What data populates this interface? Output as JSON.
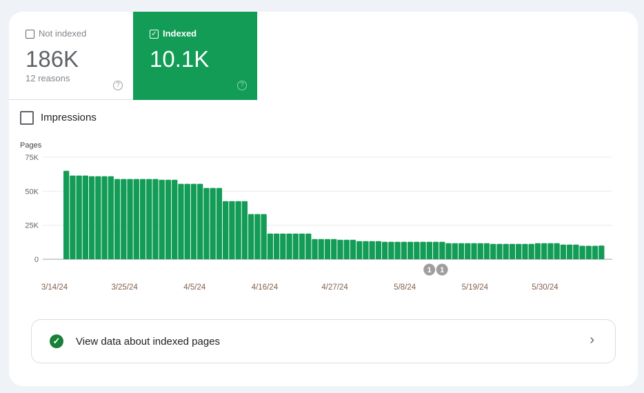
{
  "tiles": [
    {
      "label": "Not indexed",
      "value": "186K",
      "sub": "12 reasons",
      "checked": false,
      "help_icon": "help-circle-icon"
    },
    {
      "label": "Indexed",
      "value": "10.1K",
      "checked": true,
      "help_icon": "help-circle-icon"
    }
  ],
  "impressions": {
    "label": "Impressions",
    "checked": false
  },
  "colors": {
    "accent": "#129c55",
    "success": "#188038"
  },
  "chart_data": {
    "type": "bar",
    "ylabel": "Pages",
    "ylim": [
      0,
      75000
    ],
    "yticks": [
      "0",
      "25K",
      "50K",
      "75K"
    ],
    "ytick_values": [
      0,
      25000,
      50000,
      75000
    ],
    "xtick_labels": [
      "3/14/24",
      "3/25/24",
      "4/5/24",
      "4/16/24",
      "4/27/24",
      "5/8/24",
      "5/19/24",
      "5/30/24"
    ],
    "grid": true,
    "categories": [
      "3/14",
      "3/15",
      "3/16",
      "3/17",
      "3/18",
      "3/19",
      "3/20",
      "3/21",
      "3/22",
      "3/23",
      "3/24",
      "3/25",
      "3/26",
      "3/27",
      "3/28",
      "3/29",
      "3/30",
      "3/31",
      "4/1",
      "4/2",
      "4/3",
      "4/4",
      "4/5",
      "4/6",
      "4/7",
      "4/8",
      "4/9",
      "4/10",
      "4/11",
      "4/12",
      "4/13",
      "4/14",
      "4/15",
      "4/16",
      "4/17",
      "4/18",
      "4/19",
      "4/20",
      "4/21",
      "4/22",
      "4/23",
      "4/24",
      "4/25",
      "4/26",
      "4/27",
      "4/28",
      "4/29",
      "4/30",
      "5/1",
      "5/2",
      "5/3",
      "5/4",
      "5/5",
      "5/6",
      "5/7",
      "5/8",
      "5/9",
      "5/10",
      "5/11",
      "5/12",
      "5/13",
      "5/14",
      "5/15",
      "5/16",
      "5/17",
      "5/18",
      "5/19",
      "5/20",
      "5/21",
      "5/22",
      "5/23",
      "5/24",
      "5/25",
      "5/26",
      "5/27",
      "5/28",
      "5/29",
      "5/30",
      "5/31",
      "6/1",
      "6/2",
      "6/3",
      "6/4",
      "6/5",
      "6/6"
    ],
    "values": [
      65000,
      61500,
      61500,
      61500,
      61000,
      61000,
      61000,
      61000,
      59000,
      59000,
      59000,
      59000,
      59000,
      59000,
      59000,
      58400,
      58400,
      58400,
      55400,
      55400,
      55400,
      55400,
      52400,
      52400,
      52400,
      42700,
      42700,
      42700,
      42700,
      33200,
      33200,
      33200,
      18900,
      18900,
      18900,
      18900,
      18900,
      18900,
      18900,
      14800,
      14800,
      14800,
      14800,
      14300,
      14300,
      14300,
      13300,
      13300,
      13300,
      13300,
      12800,
      12800,
      12800,
      12800,
      12800,
      12800,
      12800,
      12800,
      12800,
      12800,
      11800,
      11800,
      11800,
      11800,
      11800,
      11800,
      11800,
      11300,
      11300,
      11300,
      11300,
      11300,
      11300,
      11300,
      11800,
      11800,
      11800,
      11800,
      10800,
      10800,
      10800,
      9900,
      9900,
      9900,
      10100
    ],
    "annotations": [
      {
        "date": "5/10",
        "label": "1"
      },
      {
        "date": "5/12",
        "label": "1"
      }
    ]
  },
  "footer_button": {
    "label": "View data about indexed pages",
    "icon": "check-circle-icon",
    "chevron": "chevron-right-icon"
  }
}
